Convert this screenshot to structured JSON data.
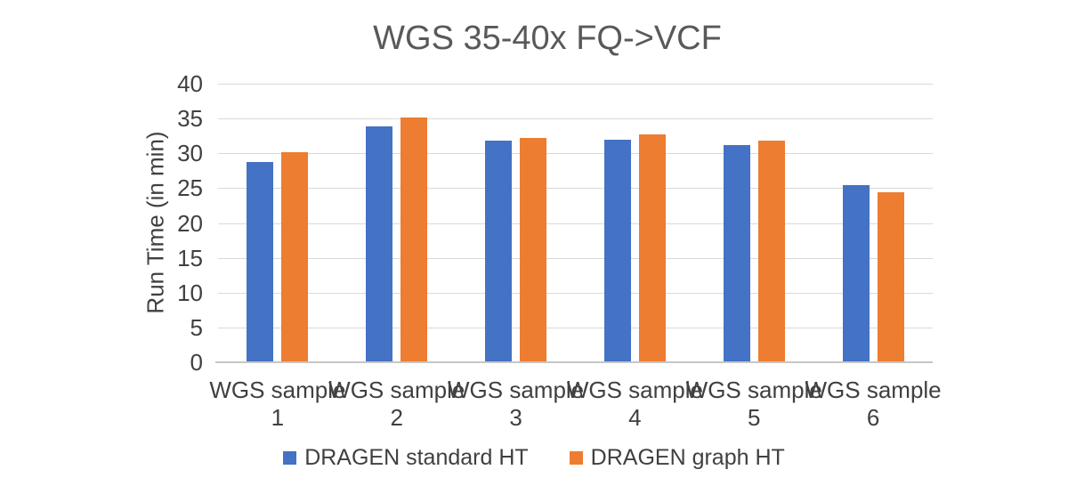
{
  "chart_data": {
    "type": "bar",
    "title": "WGS 35-40x FQ->VCF",
    "xlabel": "",
    "ylabel": "Run Time (in min)",
    "categories": [
      "WGS sample 1",
      "WGS sample 2",
      "WGS sample 3",
      "WGS sample 4",
      "WGS sample 5",
      "WGS sample 6"
    ],
    "series": [
      {
        "name": "DRAGEN standard HT",
        "color": "#4472C4",
        "values": [
          28.8,
          33.9,
          31.8,
          32.0,
          31.2,
          25.4
        ]
      },
      {
        "name": "DRAGEN graph HT",
        "color": "#ED7D31",
        "values": [
          30.1,
          35.1,
          32.2,
          32.7,
          31.8,
          24.4
        ]
      }
    ],
    "ylim": [
      0,
      40
    ],
    "ytick_step": 5,
    "grid": true,
    "legend_position": "bottom"
  },
  "colors": {
    "title_text": "#595959",
    "axis_text": "#404040",
    "gridline": "#D9D9D9",
    "axis_line": "#C6C6C6",
    "background": "#FFFFFF"
  }
}
